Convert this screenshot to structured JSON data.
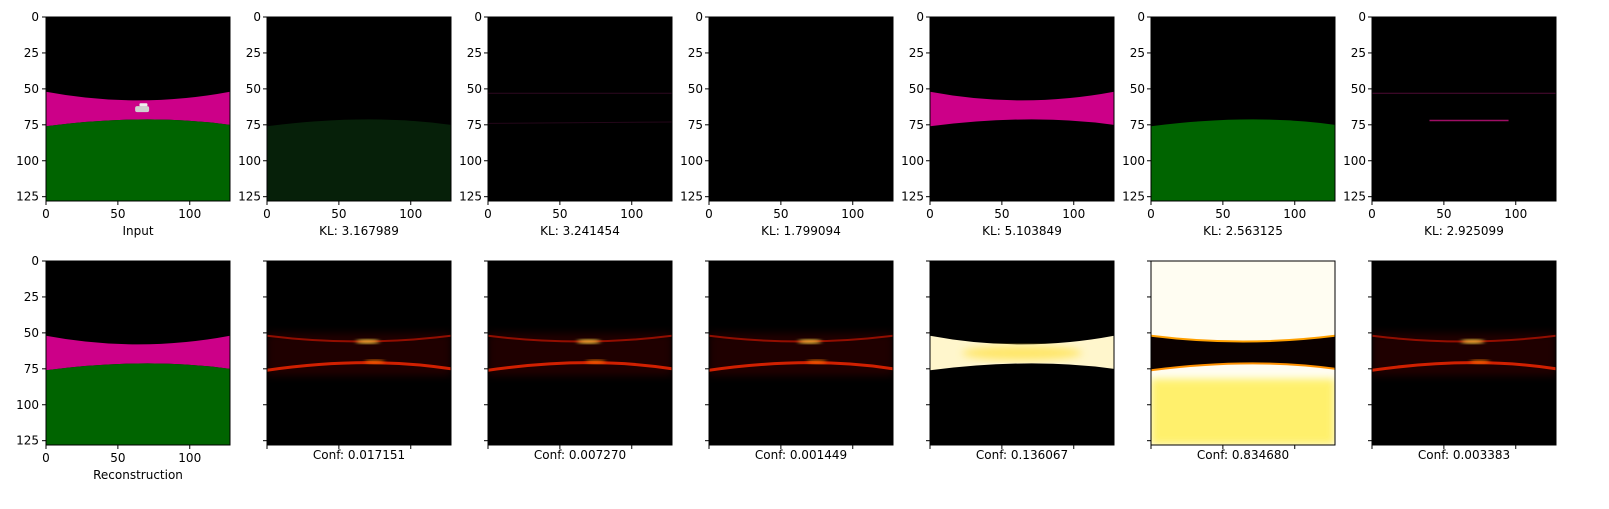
{
  "chart_data": {
    "type": "image-grid",
    "layout": {
      "rows": 2,
      "cols": 7
    },
    "x_ticks": [
      0,
      50,
      100
    ],
    "y_ticks": [
      0,
      25,
      50,
      75,
      100,
      125
    ],
    "extent": [
      0,
      128
    ],
    "colormap": "hot",
    "top_row": {
      "panels": [
        {
          "label": "Input",
          "kind": "input"
        },
        {
          "label": "KL: 3.167989",
          "kind": "slot-green-faint"
        },
        {
          "label": "KL: 3.241454",
          "kind": "slot-magenta-faint"
        },
        {
          "label": "KL: 1.799094",
          "kind": "slot-black"
        },
        {
          "label": "KL: 5.103849",
          "kind": "slot-magenta"
        },
        {
          "label": "KL: 2.563125",
          "kind": "slot-green"
        },
        {
          "label": "KL: 2.925099",
          "kind": "slot-magenta-speck"
        }
      ]
    },
    "bottom_row": {
      "panels": [
        {
          "label": "Reconstruction",
          "kind": "recon"
        },
        {
          "label": "Conf: 0.017151",
          "kind": "conf",
          "value": 0.017151
        },
        {
          "label": "Conf: 0.007270",
          "kind": "conf",
          "value": 0.00727
        },
        {
          "label": "Conf: 0.001449",
          "kind": "conf",
          "value": 0.001449
        },
        {
          "label": "Conf: 0.136067",
          "kind": "conf-road",
          "value": 0.136067
        },
        {
          "label": "Conf: 0.834680",
          "kind": "conf-bg",
          "value": 0.83468
        },
        {
          "label": "Conf: 0.003383",
          "kind": "conf",
          "value": 0.003383
        }
      ]
    },
    "colors": {
      "sky": "#000000",
      "road": "#cc0088",
      "grass": "#006400",
      "car": "#d0d0d0"
    }
  }
}
